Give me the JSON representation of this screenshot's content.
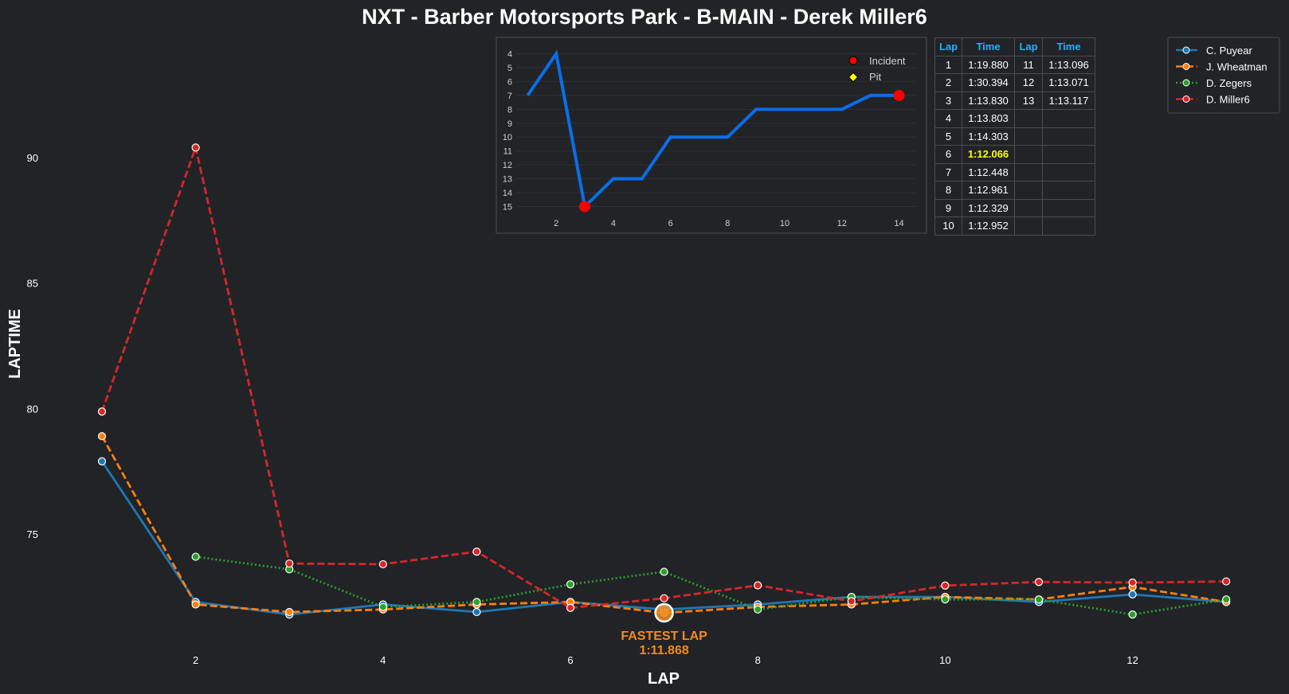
{
  "chart_data": {
    "type": "line",
    "title": "NXT - Barber Motorsports Park - B-MAIN - Derek Miller6",
    "xlabel": "LAP",
    "ylabel": "LAPTIME",
    "xlim": [
      0,
      13.3
    ],
    "ylim": [
      70.6,
      95
    ],
    "xticks": [
      2,
      4,
      6,
      8,
      10,
      12
    ],
    "yticks": [
      75,
      80,
      85,
      90
    ],
    "legend_position": "top-right",
    "series": [
      {
        "name": "C. Puyear",
        "color": "#1f77b4",
        "dash": "solid",
        "x": [
          1,
          2,
          3,
          4,
          5,
          6,
          7,
          8,
          9,
          10,
          11,
          12,
          13
        ],
        "y": [
          77.9,
          72.3,
          71.8,
          72.2,
          71.9,
          72.3,
          72.0,
          72.2,
          72.5,
          72.5,
          72.3,
          72.6,
          72.3
        ]
      },
      {
        "name": "J. Wheatman",
        "color": "#ff7f0e",
        "dash": "dashed",
        "x": [
          1,
          2,
          3,
          4,
          5,
          6,
          7,
          8,
          9,
          10,
          11,
          12,
          13
        ],
        "y": [
          78.9,
          72.2,
          71.9,
          72.0,
          72.2,
          72.3,
          71.868,
          72.1,
          72.2,
          72.5,
          72.4,
          72.9,
          72.3
        ]
      },
      {
        "name": "D. Zegers",
        "color": "#2ca02c",
        "dash": "dotted",
        "x": [
          1,
          2,
          3,
          4,
          5,
          6,
          7,
          8,
          9,
          10,
          11,
          12,
          13
        ],
        "y": [
          null,
          74.1,
          73.6,
          72.1,
          72.3,
          73.0,
          73.5,
          72.0,
          72.5,
          72.4,
          72.4,
          71.8,
          72.4
        ]
      },
      {
        "name": "D. Miller6",
        "color": "#d62728",
        "dash": "dashed",
        "x": [
          1,
          2,
          3,
          4,
          5,
          6,
          7,
          8,
          9,
          10,
          11,
          12,
          13
        ],
        "y": [
          79.88,
          90.394,
          73.83,
          73.803,
          74.303,
          72.066,
          72.448,
          72.961,
          72.329,
          72.952,
          73.096,
          73.071,
          73.117
        ]
      }
    ],
    "fastest_lap": {
      "label": "FASTEST LAP",
      "time": "1:11.868",
      "lap": 7,
      "value": 71.868,
      "color": "#f08c1e"
    },
    "inset": {
      "type": "line",
      "x": [
        1,
        2,
        3,
        4,
        5,
        6,
        7,
        8,
        9,
        10,
        11,
        12,
        13,
        14
      ],
      "positions": [
        7,
        4,
        15,
        13,
        13,
        10,
        10,
        10,
        8,
        8,
        8,
        8,
        7,
        7
      ],
      "xticks": [
        2,
        4,
        6,
        8,
        10,
        12,
        14
      ],
      "yticks": [
        4,
        5,
        6,
        7,
        8,
        9,
        10,
        11,
        12,
        13,
        14,
        15
      ],
      "xlim": [
        0.6,
        14.6
      ],
      "ylim": [
        3.8,
        15.6
      ],
      "line_color": "#0a6ee8",
      "incident_laps": [
        3,
        14
      ],
      "legend": [
        {
          "label": "Incident",
          "color": "#ff0000",
          "marker": "circle"
        },
        {
          "label": "Pit",
          "color": "#ffff00",
          "marker": "diamond"
        }
      ]
    },
    "lap_table": {
      "headers": [
        "Lap",
        "Time",
        "Lap",
        "Time"
      ],
      "rows": [
        [
          "1",
          "1:19.880",
          "11",
          "1:13.096"
        ],
        [
          "2",
          "1:30.394",
          "12",
          "1:13.071"
        ],
        [
          "3",
          "1:13.830",
          "13",
          "1:13.117"
        ],
        [
          "4",
          "1:13.803",
          "",
          ""
        ],
        [
          "5",
          "1:14.303",
          "",
          ""
        ],
        [
          "6",
          "1:12.066",
          "",
          ""
        ],
        [
          "7",
          "1:12.448",
          "",
          ""
        ],
        [
          "8",
          "1:12.961",
          "",
          ""
        ],
        [
          "9",
          "1:12.329",
          "",
          ""
        ],
        [
          "10",
          "1:12.952",
          "",
          ""
        ]
      ],
      "best_lap_row": 5
    }
  }
}
